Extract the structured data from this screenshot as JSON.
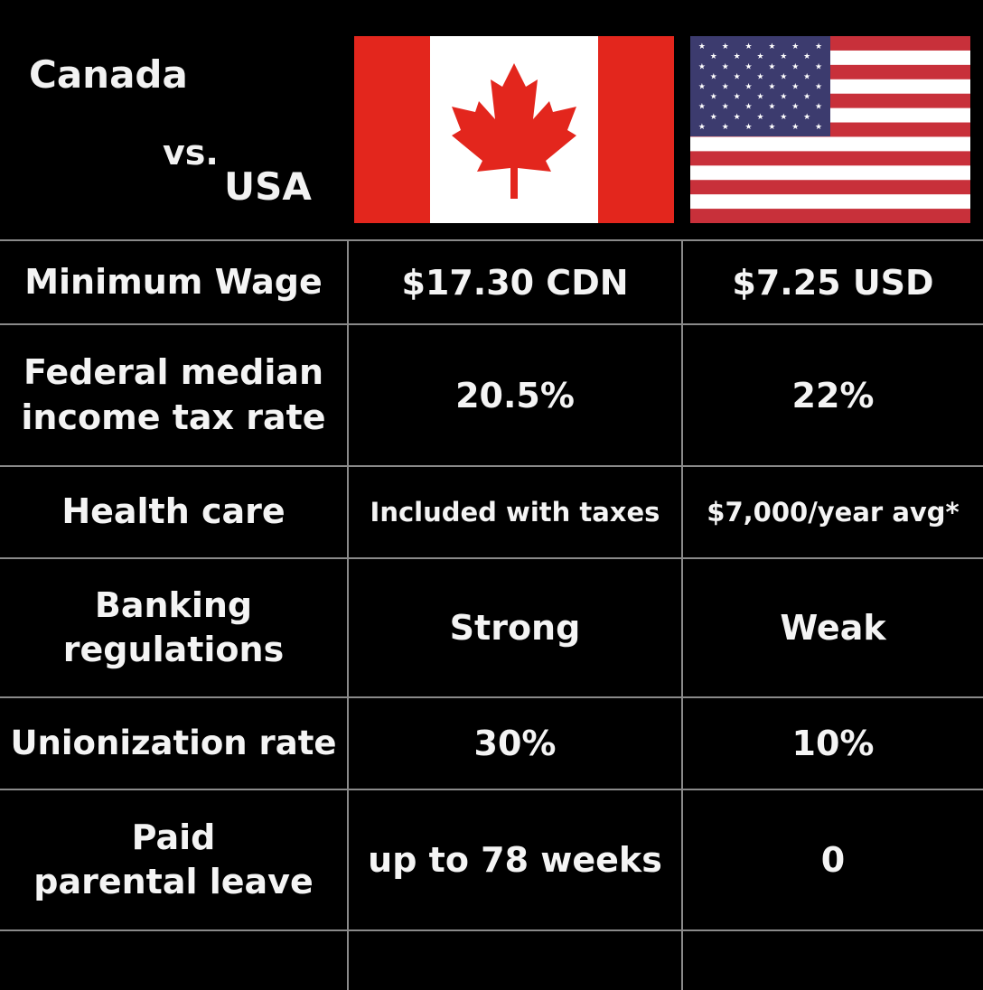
{
  "header": {
    "country_a": "Canada",
    "versus": "vs.",
    "country_b": "USA"
  },
  "flags": {
    "canada_icon": "canada-flag-icon",
    "usa_icon": "usa-flag-icon"
  },
  "colors": {
    "background": "#000000",
    "text": "#f4f4f4",
    "grid": "#8a8a8a",
    "canada_red": "#e3261d",
    "usa_red": "#c8303a",
    "usa_blue": "#3c3b6e"
  },
  "rows": [
    {
      "label": "Minimum Wage",
      "canada": "$17.30 CDN",
      "usa": "$7.25 USD"
    },
    {
      "label_line1": "Federal median",
      "label_line2": "income tax rate",
      "canada": "20.5%",
      "usa": "22%"
    },
    {
      "label": "Health care",
      "canada": "Included with taxes",
      "usa": "$7,000/year avg*"
    },
    {
      "label_line1": "Banking",
      "label_line2": "regulations",
      "canada": "Strong",
      "usa": "Weak"
    },
    {
      "label": "Unionization rate",
      "canada": "30%",
      "usa": "10%"
    },
    {
      "label_line1": "Paid",
      "label_line2": "parental leave",
      "canada": "up to 78 weeks",
      "usa": "0"
    }
  ]
}
